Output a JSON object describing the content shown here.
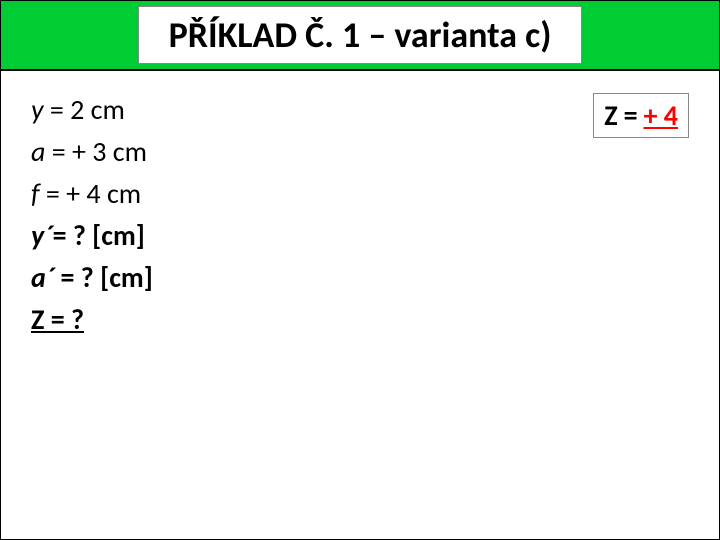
{
  "header": {
    "title": "PŘÍKLAD Č. 1 – varianta c)",
    "bg_color": "#00cc33",
    "title_fontsize": 36
  },
  "given": {
    "lines": [
      {
        "var": "y",
        "rest": " = 2 cm"
      },
      {
        "var": "a",
        "rest": " = + 3 cm"
      },
      {
        "var": "f",
        "rest": " = + 4 cm"
      },
      {
        "var": "y´",
        "rest": "= ? [cm]"
      },
      {
        "var": "a´",
        "rest": " = ? [cm]"
      }
    ],
    "last": {
      "text": "Z = ?"
    },
    "fontsize": 28
  },
  "formula": {
    "z": "Z",
    "eq": "=",
    "value": "+ 4",
    "value_color": "#ff0000"
  }
}
